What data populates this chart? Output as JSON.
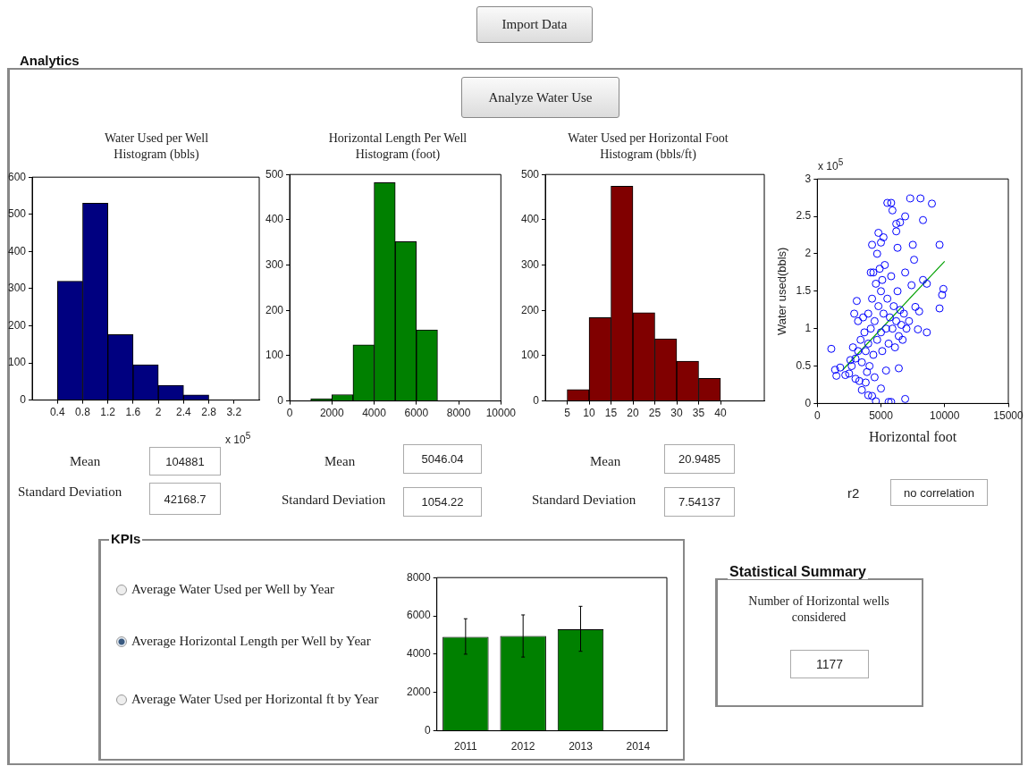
{
  "chart_data": [
    {
      "type": "other",
      "annotations": [
        "Import Data",
        "Analytics",
        "Analyze Water Use"
      ]
    },
    {
      "type": "histogram",
      "title": "Water Used per Well Histogram (bbls)",
      "xlabel": "x 10$^{5}$",
      "bins": [
        0.4,
        0.8,
        1.2,
        1.6,
        2,
        2.4,
        2.8
      ],
      "values": [
        320,
        530,
        176,
        95,
        40,
        14
      ],
      "color": "#000080",
      "xlim": [
        0,
        3.6
      ],
      "xticks": [
        0.4,
        0.8,
        1.2,
        1.6,
        2,
        2.4,
        2.8,
        3.2
      ],
      "ylim": [
        0,
        600
      ],
      "yticks": [
        0,
        100,
        200,
        300,
        400,
        500,
        600
      ],
      "annotations": [
        "Mean",
        "104881",
        "Standard Deviation",
        "42168.7"
      ]
    },
    {
      "type": "histogram",
      "title": "Horizontal Length Per Well Histogram (foot)",
      "bins": [
        1000,
        2000,
        3000,
        4000,
        5000,
        6000,
        7000
      ],
      "values": [
        5,
        14,
        124,
        482,
        352,
        157
      ],
      "color": "#008000",
      "xlim": [
        0,
        10000
      ],
      "xticks": [
        0,
        2000,
        4000,
        6000,
        8000,
        10000
      ],
      "ylim": [
        0,
        500
      ],
      "yticks": [
        0,
        100,
        200,
        300,
        400,
        500
      ],
      "annotations": [
        "Mean",
        "5046.04",
        "Standard Deviation",
        "1054.22"
      ]
    },
    {
      "type": "histogram",
      "title": "Water Used per Horizontal Foot Histogram (bbls/ft)",
      "bins": [
        5,
        10,
        15,
        20,
        25,
        30,
        35,
        40
      ],
      "values": [
        25,
        184,
        474,
        195,
        137,
        88,
        50
      ],
      "color": "#800000",
      "xlim": [
        0,
        50
      ],
      "xticks": [
        5,
        10,
        15,
        20,
        25,
        30,
        35,
        40
      ],
      "ylim": [
        0,
        500
      ],
      "yticks": [
        0,
        100,
        200,
        300,
        400,
        500
      ],
      "annotations": [
        "Mean",
        "20.9485",
        "Standard Deviation",
        "7.54137"
      ]
    },
    {
      "type": "scatter",
      "xlabel": "Horizontal foot",
      "ylabel": "Water used(bbls)",
      "xlim": [
        0,
        15000
      ],
      "xticks": [
        0,
        5000,
        10000,
        15000
      ],
      "ylim": [
        0,
        3
      ],
      "yticks": [
        0,
        0.5,
        1,
        1.5,
        2,
        2.5,
        3
      ],
      "annotations": [
        "x 10$^{5}$",
        "r2",
        "no correlation"
      ],
      "series": [
        {
          "type": "scatter",
          "marker": "circle",
          "color": "#0000ff",
          "x": [
            1100,
            1400,
            1500,
            1800,
            2200,
            2500,
            2600,
            3000,
            3300,
            3500,
            3800,
            4000,
            4300,
            4600,
            5000,
            5600,
            5800,
            6900,
            5400,
            6400,
            5500,
            5800,
            5900,
            7300,
            8100,
            9000,
            6900,
            8300,
            4800,
            5200,
            4300,
            6500,
            6200,
            7500,
            9600,
            6300,
            6200,
            5000,
            4700,
            7600,
            6900,
            4400,
            8300,
            8600,
            9900,
            9800,
            9600,
            8600,
            7900,
            8000,
            7700,
            7400,
            3100,
            2900,
            3200,
            3000,
            3200,
            3400,
            3500,
            3700,
            3800,
            4000,
            4000,
            4100,
            4200,
            4300,
            4400,
            4500,
            4600,
            4700,
            4800,
            4900,
            5000,
            5000,
            5100,
            5200,
            5300,
            5400,
            5500,
            5600,
            5700,
            5800,
            5900,
            6000,
            6100,
            6200,
            6300,
            6400,
            6500,
            6600,
            6700,
            6800,
            7000,
            7200,
            2700,
            2800,
            3600,
            4200,
            5100,
            3900,
            4500
          ],
          "values": [
            0.73,
            0.45,
            0.37,
            0.48,
            0.38,
            0.4,
            0.58,
            0.33,
            0.3,
            0.18,
            0.28,
            0.11,
            0.1,
            0.03,
            0.2,
            0.02,
            0.02,
            0.06,
            0.44,
            0.47,
            2.68,
            2.68,
            2.58,
            2.74,
            2.74,
            2.67,
            2.5,
            2.45,
            2.28,
            2.22,
            2.12,
            2.42,
            2.4,
            2.12,
            2.12,
            2.08,
            2.3,
            2.15,
            2,
            1.92,
            1.75,
            1.75,
            1.65,
            1.6,
            1.53,
            1.45,
            1.27,
            0.95,
            0.99,
            1.23,
            1.29,
            1.58,
            1.37,
            1.2,
            1.1,
            0.6,
            0.7,
            0.85,
            0.55,
            0.95,
            0.7,
            0.8,
            1.2,
            0.5,
            1,
            1.4,
            0.65,
            1.1,
            1.6,
            0.85,
            1.3,
            1.8,
            0.95,
            1.5,
            0.7,
            1.2,
            1.85,
            1,
            1.4,
            0.8,
            1.15,
            1.7,
            1,
            1.3,
            0.75,
            1.1,
            1.5,
            0.9,
            1.25,
            1.05,
            0.85,
            1.2,
            1,
            1.1,
            0.5,
            0.75,
            1.15,
            1.75,
            1.65,
            0.42,
            0.35
          ]
        },
        {
          "type": "line",
          "color": "#00a000",
          "x": [
            2000,
            10000
          ],
          "values": [
            0.45,
            1.9
          ]
        }
      ]
    },
    {
      "type": "other",
      "title": "KPIs",
      "annotations": [
        "Average Water Used per Well by Year",
        "Average Horizontal Length per Well by Year",
        "Average Water Used per Horizontal ft by Year"
      ]
    },
    {
      "type": "bar",
      "categories": [
        "2011",
        "2012",
        "2013",
        "2014"
      ],
      "values": [
        4900,
        4950,
        5300,
        null
      ],
      "errors": [
        [
          4000,
          5850
        ],
        [
          3850,
          6050
        ],
        [
          4150,
          6500
        ],
        null
      ],
      "color": "#008000",
      "ylim": [
        0,
        8000
      ],
      "yticks": [
        0,
        2000,
        4000,
        6000,
        8000
      ]
    },
    {
      "type": "other",
      "title": "Statistical Summary",
      "annotations": [
        "Number of Horizontal wells considered",
        "1177"
      ]
    }
  ]
}
